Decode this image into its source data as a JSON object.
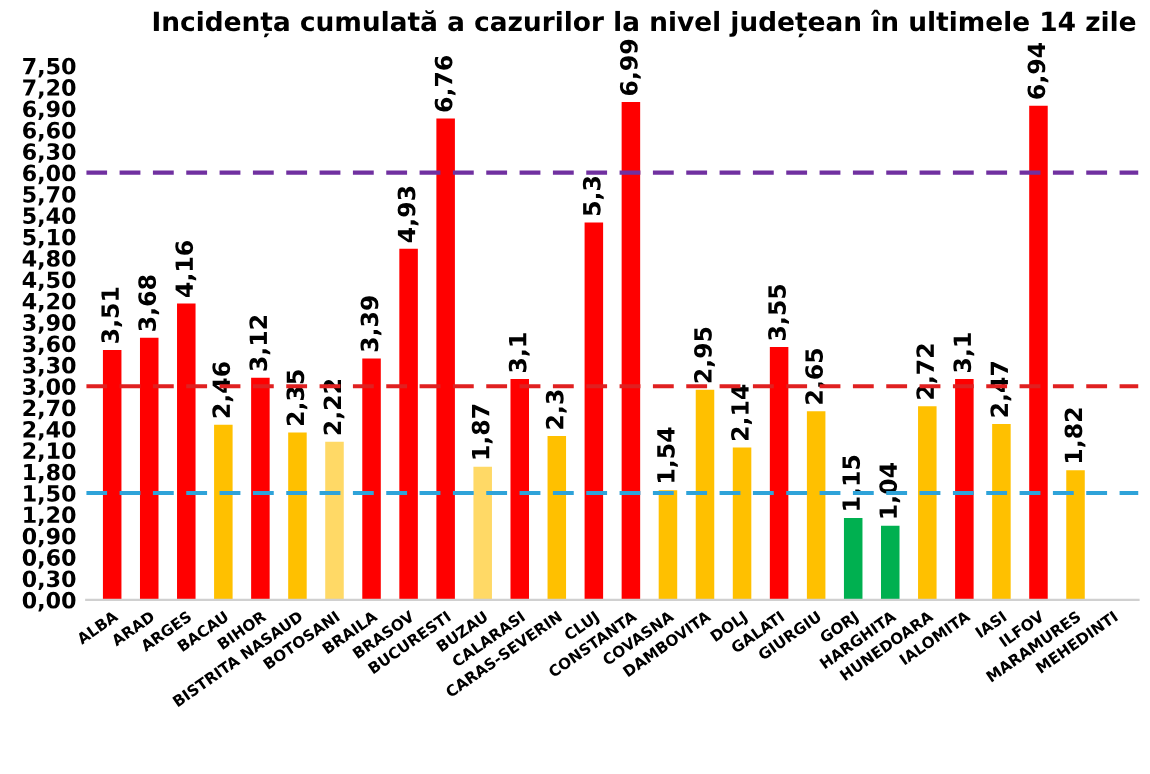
{
  "chart_data": {
    "type": "bar",
    "title": "Incidența cumulată a cazurilor la nivel județean în ultimele 14 zile",
    "categories": [
      "ALBA",
      "ARAD",
      "ARGES",
      "BACAU",
      "BIHOR",
      "BISTRITA NASAUD",
      "BOTOSANI",
      "BRAILA",
      "BRASOV",
      "BUCURESTI",
      "BUZAU",
      "CALARASI",
      "CARAS-SEVERIN",
      "CLUJ",
      "CONSTANTA",
      "COVASNA",
      "DAMBOVITA",
      "DOLJ",
      "GALATI",
      "GIURGIU",
      "GORJ",
      "HARGHITA",
      "HUNEDOARA",
      "IALOMITA",
      "IASI",
      "ILFOV",
      "MARAMURES",
      "MEHEDINTI"
    ],
    "values": [
      3.51,
      3.68,
      4.16,
      2.46,
      3.12,
      2.35,
      2.22,
      3.39,
      4.93,
      6.76,
      1.87,
      3.1,
      2.3,
      5.3,
      6.99,
      1.54,
      2.95,
      2.14,
      3.55,
      2.65,
      1.15,
      1.04,
      2.72,
      3.1,
      2.47,
      6.94,
      1.82,
      null
    ],
    "value_labels": [
      "3,51",
      "3,68",
      "4,16",
      "2,46",
      "3,12",
      "2,35",
      "2,22",
      "3,39",
      "4,93",
      "6,76",
      "1,87",
      "3,1",
      "2,3",
      "5,3",
      "6,99",
      "1,54",
      "2,95",
      "2,14",
      "3,55",
      "2,65",
      "1,15",
      "1,04",
      "2,72",
      "3,1",
      "2,47",
      "6,94",
      "1,82",
      null
    ],
    "colors": [
      "#ff0000",
      "#ff0000",
      "#ff0000",
      "#ffc000",
      "#ff0000",
      "#ffc000",
      "#ffd966",
      "#ff0000",
      "#ff0000",
      "#ff0000",
      "#ffd966",
      "#ff0000",
      "#ffc000",
      "#ff0000",
      "#ff0000",
      "#ffc000",
      "#ffc000",
      "#ffc000",
      "#ff0000",
      "#ffc000",
      "#00b050",
      "#00b050",
      "#ffc000",
      "#ff0000",
      "#ffc000",
      "#ff0000",
      "#ffc000",
      "#ffc000"
    ],
    "ylim": [
      0,
      7.5
    ],
    "yticks": [
      {
        "value": 0,
        "label": "0,00"
      },
      {
        "value": 0.3,
        "label": "0,30"
      },
      {
        "value": 0.6,
        "label": "0,60"
      },
      {
        "value": 0.9,
        "label": "0,90"
      },
      {
        "value": 1.2,
        "label": "1,20"
      },
      {
        "value": 1.5,
        "label": "1,50"
      },
      {
        "value": 1.8,
        "label": "1,80"
      },
      {
        "value": 2.1,
        "label": "2,10"
      },
      {
        "value": 2.4,
        "label": "2,40"
      },
      {
        "value": 2.7,
        "label": "2,70"
      },
      {
        "value": 3.0,
        "label": "3,00"
      },
      {
        "value": 3.3,
        "label": "3,30"
      },
      {
        "value": 3.6,
        "label": "3,60"
      },
      {
        "value": 3.9,
        "label": "3,90"
      },
      {
        "value": 4.2,
        "label": "4,20"
      },
      {
        "value": 4.5,
        "label": "4,50"
      },
      {
        "value": 4.8,
        "label": "4,80"
      },
      {
        "value": 5.1,
        "label": "5,10"
      },
      {
        "value": 5.4,
        "label": "5,40"
      },
      {
        "value": 5.7,
        "label": "5,70"
      },
      {
        "value": 6.0,
        "label": "6,00"
      },
      {
        "value": 6.3,
        "label": "6,30"
      },
      {
        "value": 6.6,
        "label": "6,60"
      },
      {
        "value": 6.9,
        "label": "6,90"
      },
      {
        "value": 7.2,
        "label": "7,20"
      },
      {
        "value": 7.5,
        "label": "7,50"
      }
    ],
    "ref_lines": [
      {
        "axis": "y",
        "value": 6.0,
        "color": "#7030a0",
        "line_style": "dashed"
      },
      {
        "axis": "y",
        "value": 3.0,
        "color": "#e02020",
        "line_style": "dashed"
      },
      {
        "axis": "y",
        "value": 1.5,
        "color": "#2ea3d9",
        "line_style": "dashed"
      }
    ],
    "grid": false,
    "legend": false
  }
}
